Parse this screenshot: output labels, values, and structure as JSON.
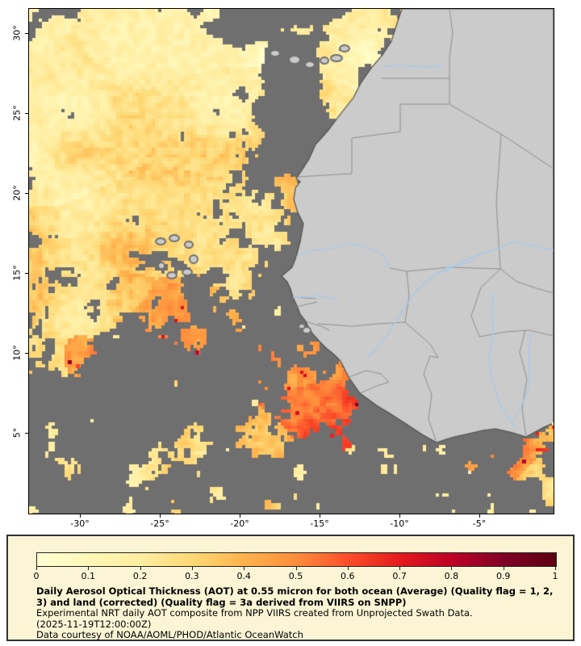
{
  "page": {
    "background": "#ffffff"
  },
  "map": {
    "frame_color": "#000000",
    "ocean_nodata_color": "#6f6f6f",
    "land_color": "#cbcbcb",
    "coast_color": "#4f4f4f",
    "border_color": "#8f8f8f",
    "river_color": "#a9cbe8",
    "lat_ticks": [
      "30°",
      "25°",
      "20°",
      "15°",
      "10°",
      "5°"
    ],
    "lon_ticks": [
      "-30°",
      "-25°",
      "-20°",
      "-15°",
      "-10°",
      "-5°"
    ]
  },
  "legend": {
    "panel_bg": "#fcf5d5",
    "ticks": [
      "0",
      "0.1",
      "0.2",
      "0.3",
      "0.4",
      "0.5",
      "0.6",
      "0.7",
      "0.8",
      "0.9",
      "1"
    ],
    "gradient": [
      "#ffffd2",
      "#fff7b8",
      "#ffeda0",
      "#fed976",
      "#feb24c",
      "#fd8d3c",
      "#fc4e2a",
      "#e31a1c",
      "#bd0026",
      "#800026",
      "#5e0012"
    ],
    "title": "Daily Aerosol Optical Thickness (AOT) at 0.55 micron for both ocean (Average) (Quality flag = 1, 2, 3) and land (corrected) (Quality flag = 3a derived from VIIRS on SNPP)",
    "subtitle": "Experimental NRT daily AOT composite from NPP VIIRS created from Unprojected Swath Data.",
    "timestamp": "(2025-11-19T12:00:00Z)",
    "credit": "Data courtesy of NOAA/AOML/PHOD/Atlantic OceanWatch"
  }
}
